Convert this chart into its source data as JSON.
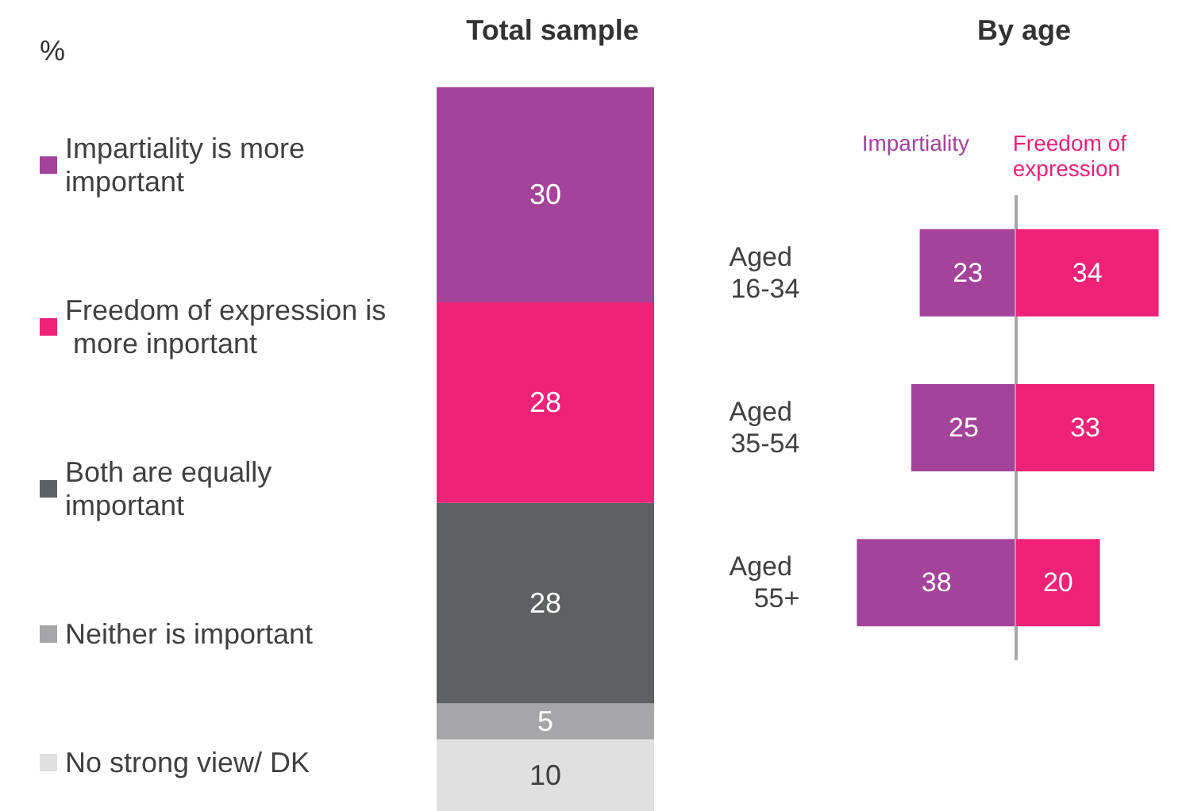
{
  "chart_data": [
    {
      "type": "bar",
      "title": "Total sample",
      "ylabel": "%",
      "stacked": true,
      "data_labels": true,
      "legend": "left",
      "tick_labels": false,
      "categories": [
        null
      ],
      "series": [
        {
          "name": "No strong view/ DK",
          "color": "#e0e0e0",
          "values": [
            10
          ]
        },
        {
          "name": "Neither is important",
          "color": "#a6a6a8",
          "values": [
            5
          ]
        },
        {
          "name": "Both are equally important",
          "color": "#5f6062",
          "values": [
            28
          ]
        },
        {
          "name": "Freedom of expression is more inportant",
          "color": "#ef2277",
          "values": [
            28
          ]
        },
        {
          "name": "Impartiality is more important",
          "color": "#a3449a",
          "values": [
            30
          ]
        }
      ]
    },
    {
      "type": "bar",
      "title": "By age",
      "orientation": "horizontal",
      "tick_labels": "y",
      "data_labels": true,
      "categories": [
        "Aged 16-34",
        "Aged 35-54",
        "Aged 55+"
      ],
      "xlim": [
        38,
        0
      ],
      "ref_lines": [
        {
          "axis": "x",
          "value": 0,
          "color": "#a6a6a8"
        }
      ],
      "series": [
        {
          "name": "Impartiality",
          "color": "#a3449a",
          "values": [
            23,
            25,
            38
          ]
        }
      ]
    },
    {
      "type": "bar",
      "orientation": "horizontal",
      "tick_labels": false,
      "data_labels": true,
      "categories": [
        "Aged 16-34",
        "Aged 35-54",
        "Aged 55+"
      ],
      "xlim": [
        0,
        34
      ],
      "series": [
        {
          "name": "Freedom of expression",
          "color": "#ef2277",
          "values": [
            34,
            33,
            20
          ]
        }
      ]
    }
  ]
}
